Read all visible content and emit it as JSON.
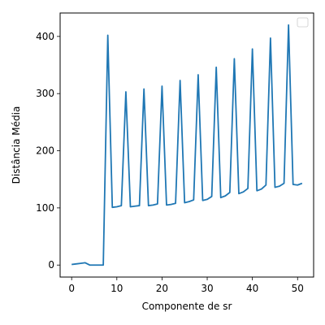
{
  "chart_data": {
    "type": "line",
    "title": "",
    "xlabel": "Componente de sr",
    "ylabel": "Distância Média",
    "xlim": [
      -2.55,
      53.55
    ],
    "ylim": [
      -21,
      441
    ],
    "xticks": [
      0,
      10,
      20,
      30,
      40,
      50
    ],
    "yticks": [
      0,
      100,
      200,
      300,
      400
    ],
    "grid": false,
    "legend": "top-right",
    "series": [
      {
        "color": "#1f77b4",
        "x": [
          0,
          1,
          2,
          3,
          4,
          5,
          6,
          7,
          8,
          9,
          10,
          11,
          12,
          13,
          14,
          15,
          16,
          17,
          18,
          19,
          20,
          21,
          22,
          23,
          24,
          25,
          26,
          27,
          28,
          29,
          30,
          31,
          32,
          33,
          34,
          35,
          36,
          37,
          38,
          39,
          40,
          41,
          42,
          43,
          44,
          45,
          46,
          47,
          48,
          49,
          50,
          51
        ],
        "y": [
          1,
          2,
          3,
          4,
          0,
          0,
          0,
          0,
          402,
          101,
          102,
          104,
          303,
          102,
          103,
          104,
          308,
          104,
          105,
          107,
          313,
          105,
          106,
          108,
          323,
          109,
          111,
          114,
          333,
          113,
          115,
          120,
          346,
          118,
          121,
          127,
          361,
          125,
          128,
          134,
          378,
          130,
          133,
          140,
          397,
          136,
          138,
          143,
          420,
          141,
          140,
          143
        ]
      }
    ]
  }
}
